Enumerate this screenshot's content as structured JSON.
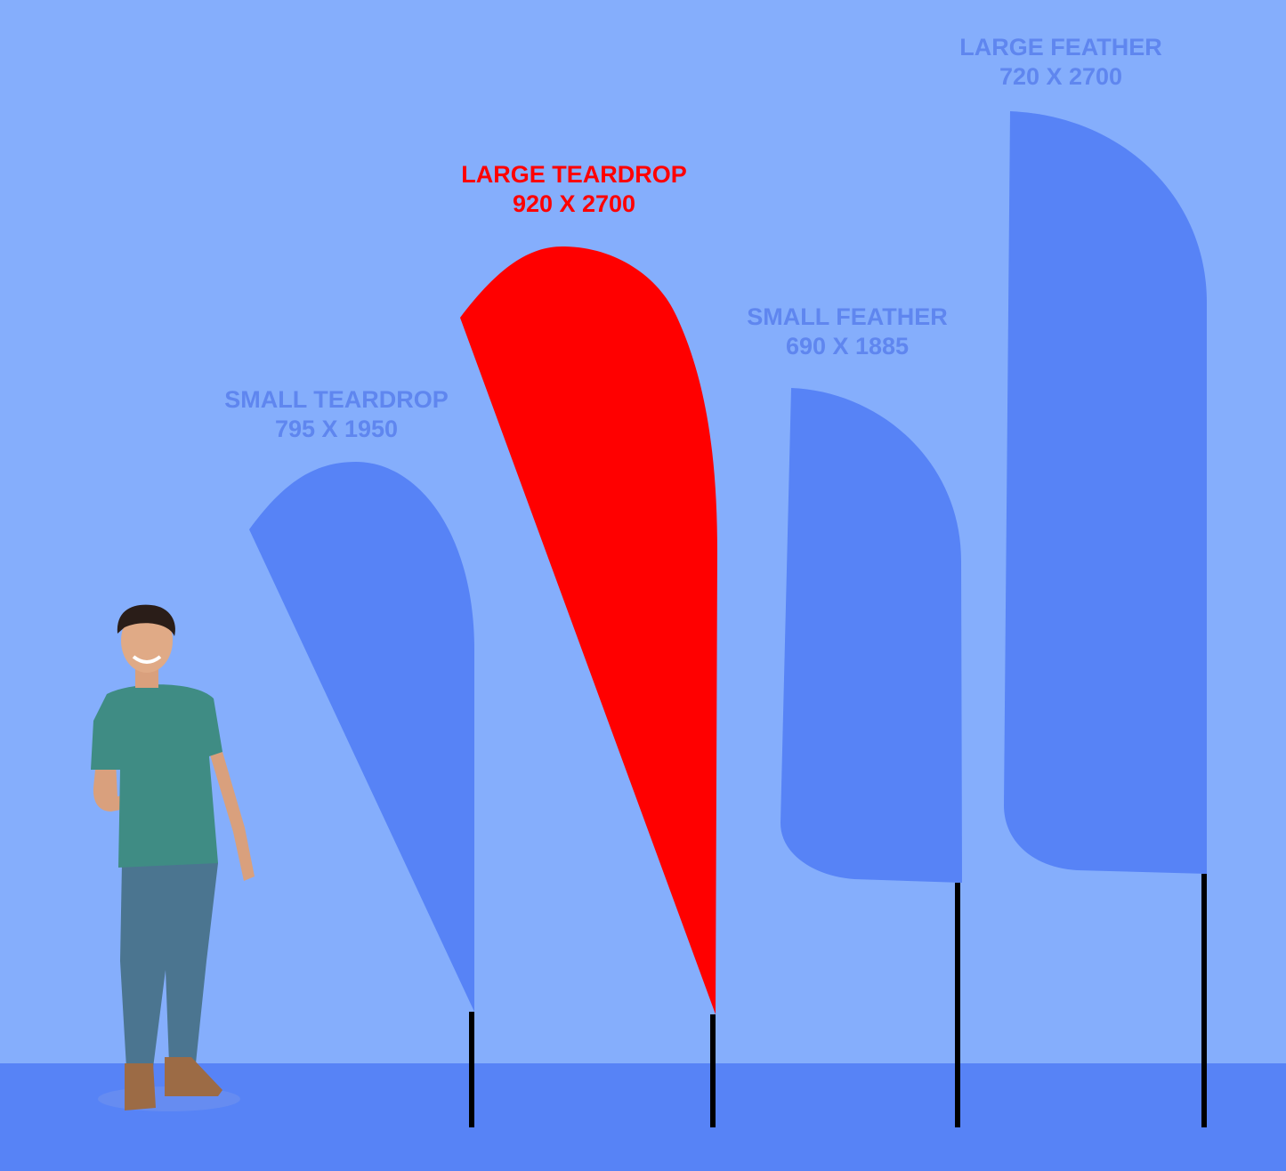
{
  "colors": {
    "background": "#85aefc",
    "ground": "#5783f6",
    "flag_default": "#5783f6",
    "flag_highlight": "#ff0000",
    "label_default": "#5f86ef",
    "label_highlight": "#ff0000",
    "pole": "#000000"
  },
  "flags": [
    {
      "name": "SMALL TEARDROP",
      "size": "795 X 1950",
      "highlighted": false
    },
    {
      "name": "LARGE TEARDROP",
      "size": "920 X 2700",
      "highlighted": true
    },
    {
      "name": "SMALL FEATHER",
      "size": "690 X 1885",
      "highlighted": false
    },
    {
      "name": "LARGE FEATHER",
      "size": "720 X 2700",
      "highlighted": false
    }
  ],
  "scale_reference": "person-figure"
}
